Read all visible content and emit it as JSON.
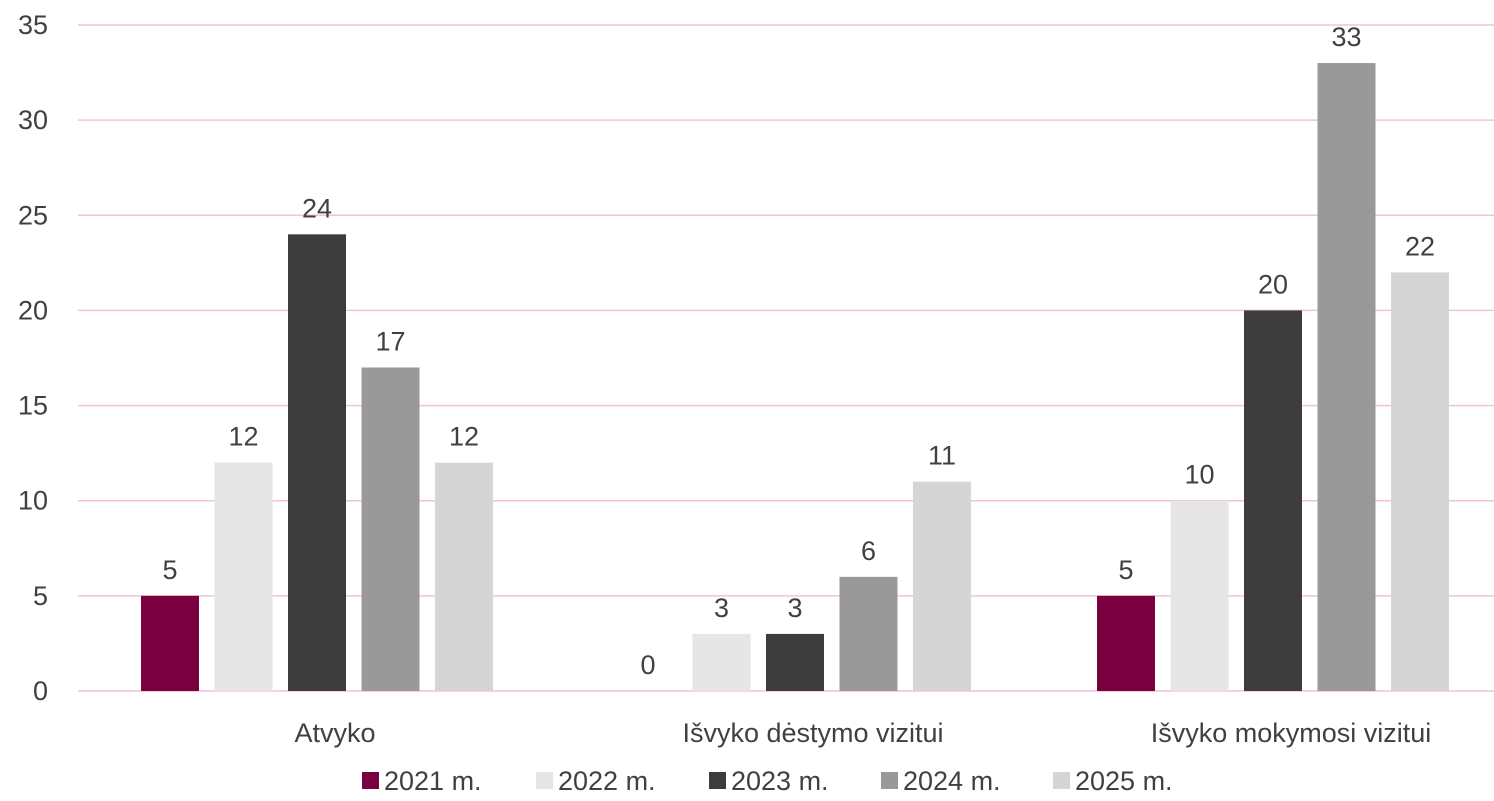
{
  "chart_data": {
    "type": "bar",
    "title": "",
    "xlabel": "",
    "ylabel": "",
    "categories": [
      "Atvyko",
      "Išvyko dėstymo vizitui",
      "Išvyko mokymosi vizitui"
    ],
    "series": [
      {
        "name": "2021 m.",
        "color": "#7a0040",
        "values": [
          5,
          0,
          5
        ]
      },
      {
        "name": "2022 m.",
        "color": "#e6e6e6",
        "values": [
          12,
          3,
          10
        ]
      },
      {
        "name": "2023 m.",
        "color": "#3c3c3c",
        "values": [
          24,
          3,
          20
        ]
      },
      {
        "name": "2024 m.",
        "color": "#999999",
        "values": [
          17,
          6,
          33
        ]
      },
      {
        "name": "2025 m.",
        "color": "#d5d5d5",
        "values": [
          12,
          11,
          22
        ]
      }
    ],
    "ylim": [
      0,
      35
    ],
    "yticks": [
      0,
      5,
      10,
      15,
      20,
      25,
      30,
      35
    ],
    "grid": true,
    "gridline_color": "#f4c2d8",
    "data_labels": true,
    "legend_position": "bottom"
  }
}
